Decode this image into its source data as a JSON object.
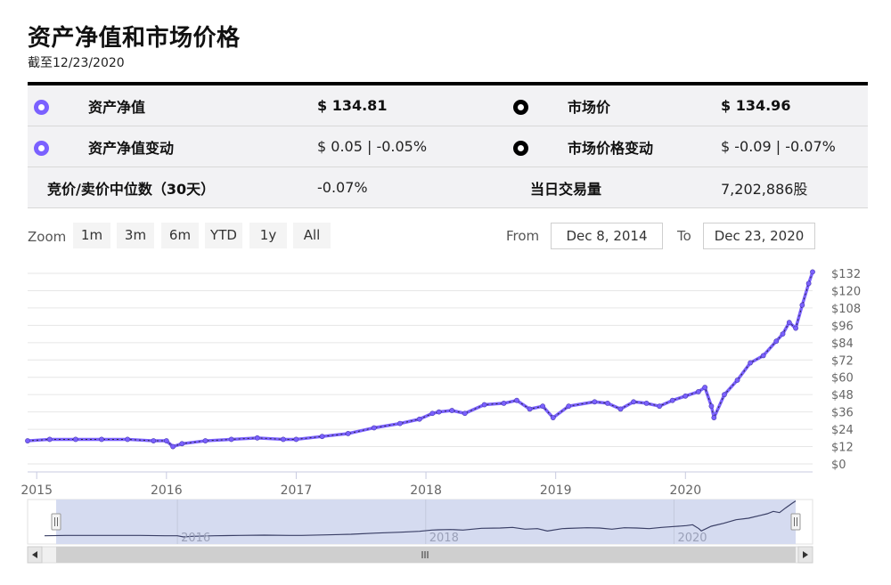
{
  "header": {
    "title": "资产净值和市场价格",
    "subtitle": "截至12/23/2020"
  },
  "stats": {
    "nav_label": "资产净值",
    "nav_value": "$ 134.81",
    "market_label": "市场价",
    "market_value": "$ 134.96",
    "nav_change_label": "资产净值变动",
    "nav_change_value": "$ 0.05 | -0.05%",
    "market_change_label": "市场价格变动",
    "market_change_value": "$ -0.09 | -0.07%",
    "spread_label": "竞价/卖价中位数（30天）",
    "spread_value": "-0.07%",
    "volume_label": "当日交易量",
    "volume_value": "7,202,886股"
  },
  "controls": {
    "zoom_label": "Zoom",
    "zoom_buttons": [
      "1m",
      "3m",
      "6m",
      "YTD",
      "1y",
      "All"
    ],
    "from_label": "From",
    "from_value": "Dec 8, 2014",
    "to_label": "To",
    "to_value": "Dec 23, 2020"
  },
  "colors": {
    "nav": "#7b61ff",
    "market": "#000000",
    "navigator_fill": "#d5dbf0"
  },
  "chart_data": {
    "type": "line",
    "x_ticks": [
      "2015",
      "2016",
      "2017",
      "2018",
      "2019",
      "2020"
    ],
    "y_ticks": [
      "$0",
      "$12",
      "$24",
      "$36",
      "$48",
      "$60",
      "$72",
      "$84",
      "$96",
      "$108",
      "$120",
      "$132"
    ],
    "ylim": [
      0,
      132
    ],
    "xlim": [
      2014.93,
      2020.98
    ],
    "grid": true,
    "navigator_labels": [
      "2016",
      "2018",
      "2020"
    ],
    "series": [
      {
        "name": "资产净值",
        "x": [
          2014.93,
          2015.1,
          2015.3,
          2015.5,
          2015.7,
          2015.9,
          2016.0,
          2016.05,
          2016.12,
          2016.3,
          2016.5,
          2016.7,
          2016.9,
          2017.0,
          2017.2,
          2017.4,
          2017.6,
          2017.8,
          2017.95,
          2018.05,
          2018.1,
          2018.2,
          2018.3,
          2018.45,
          2018.6,
          2018.7,
          2018.8,
          2018.9,
          2018.98,
          2019.1,
          2019.3,
          2019.4,
          2019.5,
          2019.6,
          2019.7,
          2019.8,
          2019.9,
          2020.0,
          2020.1,
          2020.15,
          2020.2,
          2020.22,
          2020.3,
          2020.4,
          2020.5,
          2020.6,
          2020.7,
          2020.75,
          2020.8,
          2020.85,
          2020.9,
          2020.95,
          2020.98
        ],
        "y": [
          16,
          17,
          17,
          17,
          17,
          16,
          16,
          12,
          14,
          16,
          17,
          18,
          17,
          17,
          19,
          21,
          25,
          28,
          31,
          35,
          36,
          37,
          35,
          41,
          42,
          44,
          38,
          40,
          32,
          40,
          43,
          42,
          38,
          43,
          42,
          40,
          44,
          47,
          50,
          53,
          40,
          32,
          48,
          58,
          70,
          75,
          85,
          90,
          98,
          94,
          110,
          125,
          133
        ]
      }
    ]
  }
}
